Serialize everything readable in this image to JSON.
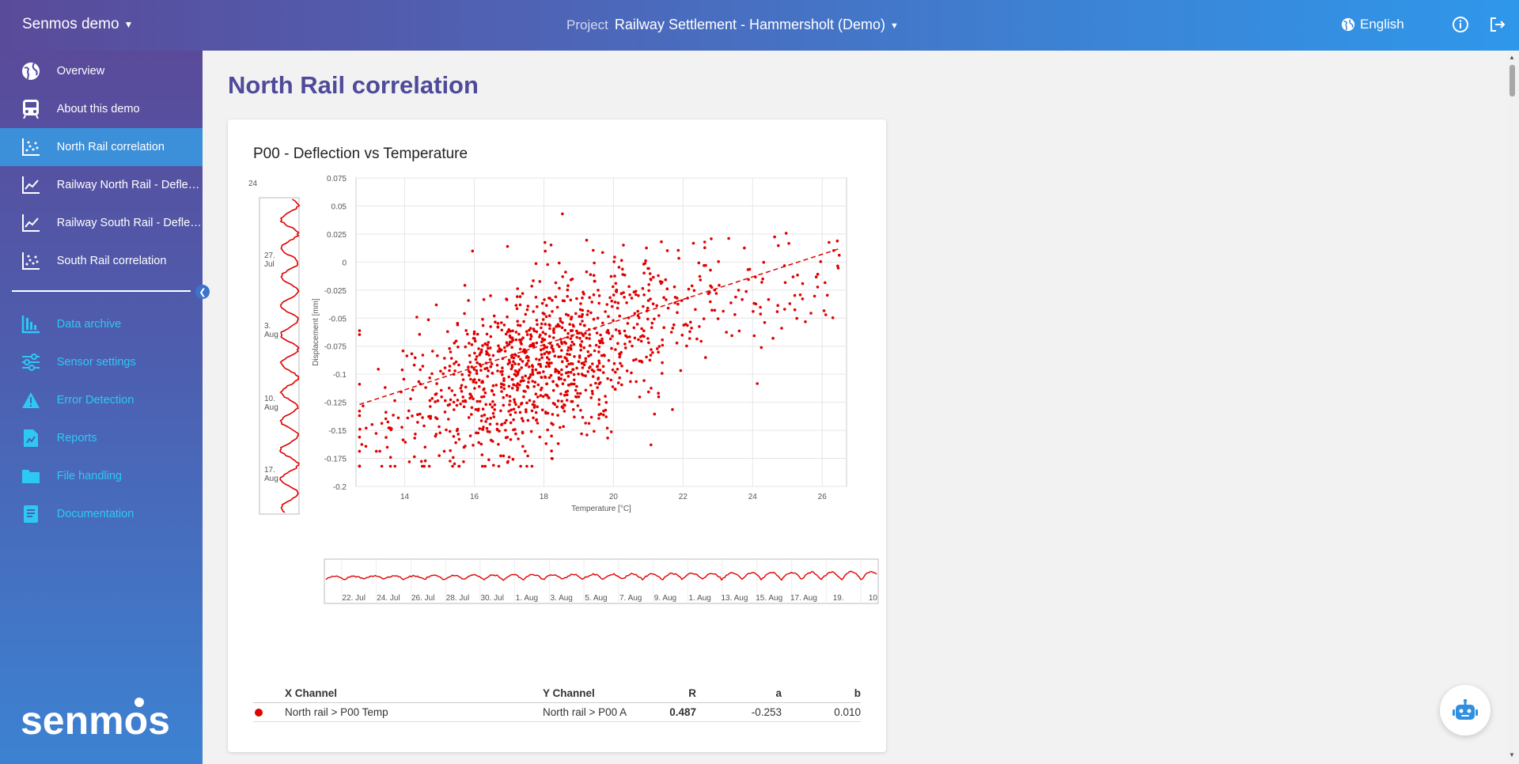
{
  "header": {
    "brand": "Senmos demo",
    "project_label": "Project",
    "project_name": "Railway Settlement - Hammersholt (Demo)",
    "language": "English"
  },
  "sidebar": {
    "items": [
      {
        "label": "Overview",
        "icon": "globe-icon"
      },
      {
        "label": "About this demo",
        "icon": "train-icon"
      },
      {
        "label": "North Rail correlation",
        "icon": "scatter-icon",
        "active": true
      },
      {
        "label": "Railway North Rail - Deflection",
        "icon": "line-chart-icon"
      },
      {
        "label": "Railway South Rail - Deflection",
        "icon": "line-chart-icon"
      },
      {
        "label": "South Rail correlation",
        "icon": "scatter-icon"
      }
    ],
    "secondary": [
      {
        "label": "Data archive",
        "icon": "bar-chart-icon"
      },
      {
        "label": "Sensor settings",
        "icon": "sliders-icon"
      },
      {
        "label": "Error Detection",
        "icon": "warning-icon"
      },
      {
        "label": "Reports",
        "icon": "report-icon"
      },
      {
        "label": "File handling",
        "icon": "folder-icon"
      },
      {
        "label": "Documentation",
        "icon": "book-icon"
      }
    ],
    "logo_text": "senmos"
  },
  "main": {
    "title": "North Rail correlation",
    "card_title": "P00 - Deflection vs Temperature"
  },
  "chart_data": {
    "type": "scatter",
    "title": "P00 - Deflection vs Temperature",
    "xlabel": "Temperature [°C]",
    "ylabel": "Displacement [mm]",
    "xlim": [
      12.6,
      26.7
    ],
    "ylim": [
      -0.2,
      0.075
    ],
    "xticks": [
      "14",
      "16",
      "18",
      "20",
      "22",
      "24",
      "26"
    ],
    "yticks": [
      "0.075",
      "0.05",
      "0.025",
      "0",
      "-0.025",
      "-0.05",
      "-0.075",
      "-0.1",
      "-0.125",
      "-0.15",
      "-0.175",
      "-0.2"
    ],
    "series": [
      {
        "name": "North rail > P00 A",
        "color": "#e00000"
      }
    ],
    "trendline": {
      "a": -0.253,
      "b": 0.01,
      "x_from": 12.7,
      "x_to": 26.5,
      "y_from": -0.127,
      "y_to": 0.012
    },
    "point_count": 1200,
    "navigator_labels": [
      "22. Jul",
      "24. Jul",
      "26. Jul",
      "28. Jul",
      "30. Jul",
      "1. Aug",
      "3. Aug",
      "5. Aug",
      "7. Aug",
      "9. Aug",
      "1. Aug",
      "13. Aug",
      "15. Aug",
      "17. Aug",
      "19.",
      "10"
    ],
    "time_axis_labels": [
      "24",
      "27. Jul",
      "3. Aug",
      "10. Aug",
      "17. Aug"
    ]
  },
  "table": {
    "headers": {
      "x": "X Channel",
      "y": "Y Channel",
      "r": "R",
      "a": "a",
      "b": "b"
    },
    "rows": [
      {
        "x": "North rail > P00 Temp",
        "y": "North rail > P00 A",
        "r": "0.487",
        "a": "-0.253",
        "b": "0.010"
      }
    ]
  }
}
